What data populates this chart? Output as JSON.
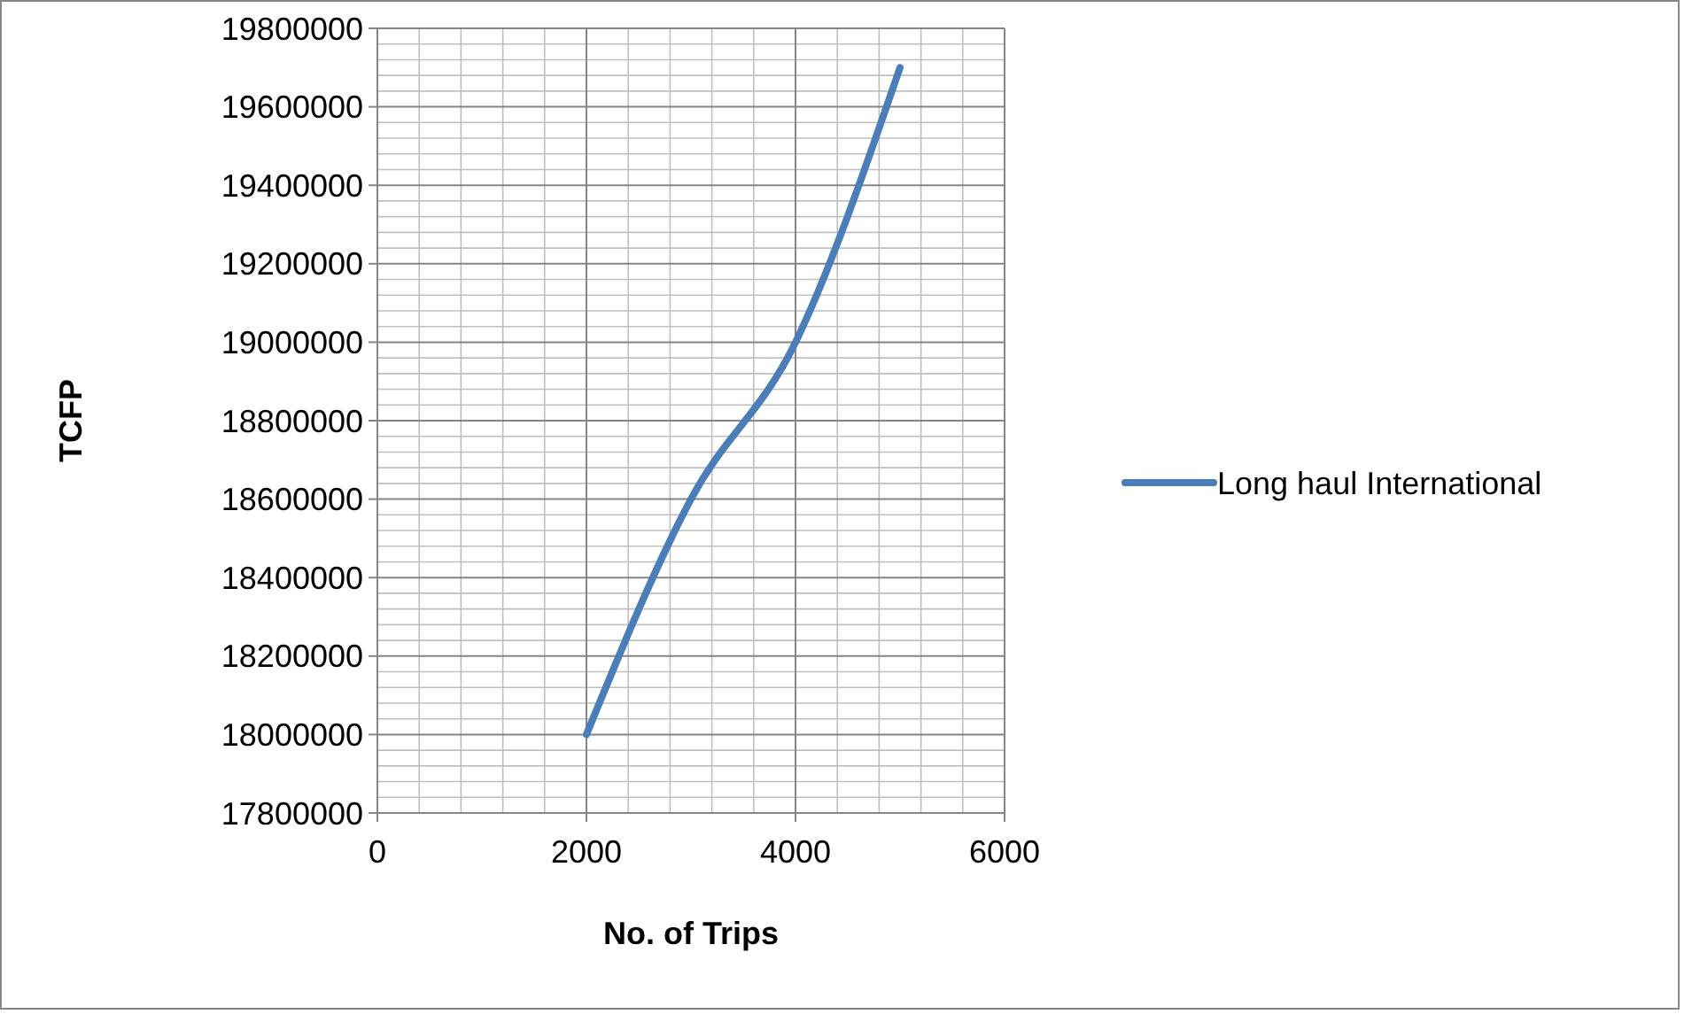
{
  "chart_data": {
    "type": "line",
    "xlabel": "No. of Trips",
    "ylabel": "TCFP",
    "x": [
      2000,
      3000,
      4000,
      5000
    ],
    "series": [
      {
        "name": "Long haul International",
        "color": "#4a7ebb",
        "values": [
          18000000,
          18600000,
          19000000,
          19700000
        ]
      }
    ],
    "xlim": [
      0,
      6000
    ],
    "xticks": [
      0,
      2000,
      4000,
      6000
    ],
    "ylim": [
      17800000,
      19800000
    ],
    "yticks": [
      17800000,
      18000000,
      18200000,
      18400000,
      18600000,
      18800000,
      19000000,
      19200000,
      19400000,
      19600000,
      19800000
    ],
    "grid": true,
    "legend": "right",
    "marker": "none",
    "line_style": "solid"
  }
}
